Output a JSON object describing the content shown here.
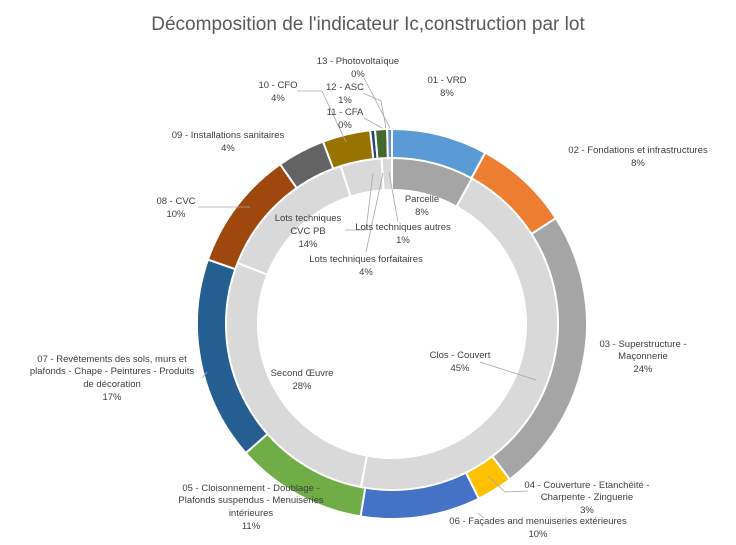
{
  "chart_data": {
    "type": "doughnut",
    "title": "Décomposition de l'indicateur Ic,construction par lot",
    "outer_series": [
      {
        "name": "01 - VRD",
        "value": 8,
        "label": "8%",
        "color": "#5B9BD5"
      },
      {
        "name": "02 - Fondations et infrastructures",
        "value": 8,
        "label": "8%",
        "color": "#ED7D31"
      },
      {
        "name": "03 - Superstructure - Maçonnerie",
        "value": 24,
        "label": "24%",
        "color": "#A5A5A5"
      },
      {
        "name": "04 - Couverture - Etanchéité - Charpente - Zinguerie",
        "value": 3,
        "label": "3%",
        "color": "#FFC000"
      },
      {
        "name": "06 - Façades and menuiseries extérieures",
        "value": 10,
        "label": "10%",
        "color": "#4472C4"
      },
      {
        "name": "05 - Cloisonnement - Doublage - Plafonds suspendus - Menuiseries intérieures",
        "value": 11,
        "label": "11%",
        "color": "#70AD47"
      },
      {
        "name": "07 - Revêtements des sols, murs et plafonds - Chape - Peintures - Produits de décoration",
        "value": 17,
        "label": "17%",
        "color": "#255E91"
      },
      {
        "name": "08 - CVC",
        "value": 10,
        "label": "10%",
        "color": "#9E480E"
      },
      {
        "name": "09 - Installations sanitaires",
        "value": 4,
        "label": "4%",
        "color": "#636363"
      },
      {
        "name": "10 - CFO",
        "value": 4,
        "label": "4%",
        "color": "#997300"
      },
      {
        "name": "11 - CFA",
        "value": 0.4,
        "label": "0%",
        "color": "#264478"
      },
      {
        "name": "12 - ASC",
        "value": 1,
        "label": "1%",
        "color": "#43682B"
      },
      {
        "name": "13 - Photovoltaïque",
        "value": 0.4,
        "label": "0%",
        "color": "#698ED0"
      }
    ],
    "inner_series": [
      {
        "name": "Parcelle",
        "value": 8,
        "label": "8%",
        "color": "#A5A5A5"
      },
      {
        "name": "Clos - Couvert",
        "value": 45,
        "label": "45%",
        "color": "#D9D9D9"
      },
      {
        "name": "Second Œuvre",
        "value": 28,
        "label": "28%",
        "color": "#D9D9D9"
      },
      {
        "name": "Lots techniques CVC PB",
        "value": 14,
        "label": "14%",
        "color": "#D9D9D9"
      },
      {
        "name": "Lots techniques forfaitaires",
        "value": 4,
        "label": "4%",
        "color": "#D9D9D9"
      },
      {
        "name": "Lots techniques autres",
        "value": 1,
        "label": "1%",
        "color": "#D9D9D9"
      }
    ]
  }
}
